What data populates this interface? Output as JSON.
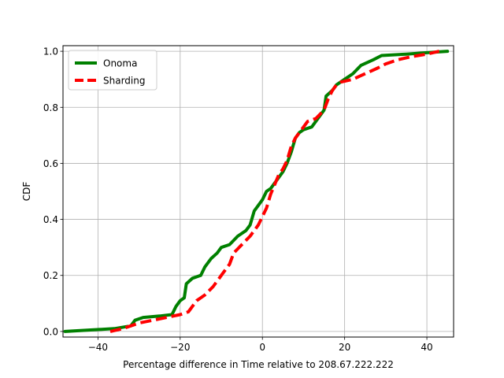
{
  "chart_data": {
    "type": "line",
    "xlabel": "Percentage difference in Time relative to 208.67.222.222",
    "ylabel": "CDF",
    "xlim": [
      -48.5,
      46.5
    ],
    "ylim": [
      -0.02,
      1.02
    ],
    "xticks": [
      -40,
      -20,
      0,
      20,
      40
    ],
    "xtick_labels": [
      "−40",
      "−20",
      "0",
      "20",
      "40"
    ],
    "yticks": [
      0.0,
      0.2,
      0.4,
      0.6,
      0.8,
      1.0
    ],
    "ytick_labels": [
      "0.0",
      "0.2",
      "0.4",
      "0.6",
      "0.8",
      "1.0"
    ],
    "grid": true,
    "legend_position": "top-left",
    "series": [
      {
        "name": "Onoma",
        "color": "#008000",
        "dash": "solid",
        "points": [
          [
            -48,
            0.0
          ],
          [
            -36,
            0.01
          ],
          [
            -32,
            0.02
          ],
          [
            -31,
            0.04
          ],
          [
            -29,
            0.05
          ],
          [
            -25,
            0.055
          ],
          [
            -22,
            0.06
          ],
          [
            -21,
            0.09
          ],
          [
            -20,
            0.11
          ],
          [
            -19,
            0.12
          ],
          [
            -18.5,
            0.17
          ],
          [
            -17,
            0.19
          ],
          [
            -15,
            0.2
          ],
          [
            -14,
            0.23
          ],
          [
            -12.5,
            0.26
          ],
          [
            -11,
            0.28
          ],
          [
            -10,
            0.3
          ],
          [
            -8,
            0.31
          ],
          [
            -6,
            0.34
          ],
          [
            -4,
            0.36
          ],
          [
            -3,
            0.38
          ],
          [
            -2,
            0.43
          ],
          [
            -1,
            0.45
          ],
          [
            0,
            0.47
          ],
          [
            1,
            0.5
          ],
          [
            2,
            0.51
          ],
          [
            3,
            0.53
          ],
          [
            4,
            0.55
          ],
          [
            5,
            0.57
          ],
          [
            6,
            0.6
          ],
          [
            7,
            0.64
          ],
          [
            8,
            0.69
          ],
          [
            9,
            0.71
          ],
          [
            10,
            0.72
          ],
          [
            12,
            0.73
          ],
          [
            13,
            0.75
          ],
          [
            15,
            0.79
          ],
          [
            15.5,
            0.84
          ],
          [
            17,
            0.86
          ],
          [
            18,
            0.88
          ],
          [
            20,
            0.9
          ],
          [
            22,
            0.92
          ],
          [
            24,
            0.95
          ],
          [
            27,
            0.97
          ],
          [
            29,
            0.985
          ],
          [
            35,
            0.99
          ],
          [
            40,
            0.995
          ],
          [
            45,
            1.0
          ]
        ]
      },
      {
        "name": "Sharding",
        "color": "#ff0000",
        "dash": "dashed",
        "points": [
          [
            -37,
            0.0
          ],
          [
            -34,
            0.01
          ],
          [
            -30,
            0.03
          ],
          [
            -25,
            0.045
          ],
          [
            -20,
            0.06
          ],
          [
            -18,
            0.07
          ],
          [
            -16,
            0.11
          ],
          [
            -14,
            0.13
          ],
          [
            -12,
            0.16
          ],
          [
            -10,
            0.2
          ],
          [
            -8,
            0.24
          ],
          [
            -7,
            0.28
          ],
          [
            -5,
            0.31
          ],
          [
            -3,
            0.34
          ],
          [
            -2,
            0.36
          ],
          [
            -1,
            0.38
          ],
          [
            0,
            0.41
          ],
          [
            1,
            0.44
          ],
          [
            2,
            0.49
          ],
          [
            4,
            0.56
          ],
          [
            5,
            0.58
          ],
          [
            6,
            0.61
          ],
          [
            7,
            0.66
          ],
          [
            8,
            0.69
          ],
          [
            9,
            0.71
          ],
          [
            11,
            0.75
          ],
          [
            13,
            0.76
          ],
          [
            15,
            0.79
          ],
          [
            16,
            0.83
          ],
          [
            17,
            0.86
          ],
          [
            18,
            0.88
          ],
          [
            19,
            0.89
          ],
          [
            22,
            0.9
          ],
          [
            25,
            0.92
          ],
          [
            28,
            0.94
          ],
          [
            30,
            0.955
          ],
          [
            33,
            0.97
          ],
          [
            36,
            0.98
          ],
          [
            40,
            0.99
          ],
          [
            43,
            1.0
          ]
        ]
      }
    ]
  }
}
